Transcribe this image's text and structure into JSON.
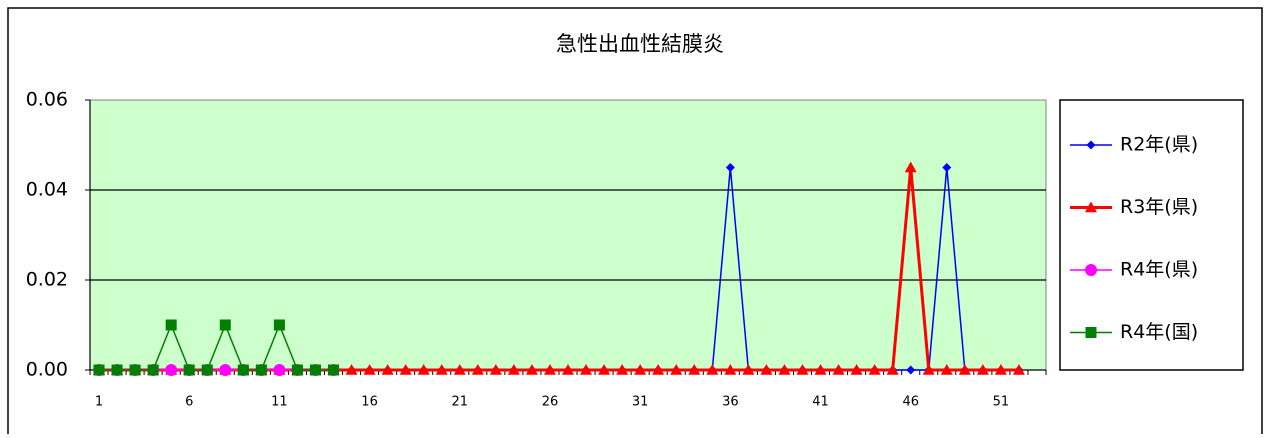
{
  "chart_data": {
    "type": "line",
    "title": "急性出血性結膜炎",
    "categories": [
      1,
      null,
      null,
      null,
      null,
      6,
      null,
      null,
      null,
      null,
      11,
      null,
      null,
      null,
      null,
      16,
      null,
      null,
      null,
      null,
      21,
      null,
      null,
      null,
      null,
      26,
      null,
      null,
      null,
      null,
      31,
      null,
      null,
      null,
      null,
      36,
      null,
      null,
      null,
      null,
      41,
      null,
      null,
      null,
      null,
      46,
      null,
      null,
      null,
      null,
      51,
      null,
      null
    ],
    "series": [
      {
        "name": "R2年(県)",
        "color": "#0000ff",
        "marker": "diamond",
        "values": [
          0,
          0,
          0,
          0,
          0,
          0,
          0,
          0,
          0,
          0,
          0,
          0,
          0,
          0,
          0,
          0,
          0,
          0,
          0,
          0,
          0,
          0,
          0,
          0,
          0,
          0,
          0,
          0,
          0,
          0,
          0,
          0,
          0,
          0,
          0,
          0.045,
          0,
          0,
          0,
          0,
          0,
          0,
          0,
          0,
          0,
          0,
          0,
          0.045,
          0,
          0,
          0,
          0,
          null
        ]
      },
      {
        "name": "R3年(県)",
        "color": "#ff0000",
        "marker": "triangle",
        "values": [
          0,
          0,
          0,
          0,
          0,
          0,
          0,
          0,
          0,
          0,
          0,
          0,
          0,
          0,
          0,
          0,
          0,
          0,
          0,
          0,
          0,
          0,
          0,
          0,
          0,
          0,
          0,
          0,
          0,
          0,
          0,
          0,
          0,
          0,
          0,
          0,
          0,
          0,
          0,
          0,
          0,
          0,
          0,
          0,
          0,
          0.045,
          0,
          0,
          0,
          0,
          0,
          0,
          null
        ]
      },
      {
        "name": "R4年(県)",
        "color": "#ff00ff",
        "marker": "circle",
        "values": [
          0,
          0,
          0,
          0,
          0,
          0,
          0,
          0,
          0,
          0,
          0,
          0,
          0,
          0,
          null,
          null,
          null,
          null,
          null,
          null,
          null,
          null,
          null,
          null,
          null,
          null,
          null,
          null,
          null,
          null,
          null,
          null,
          null,
          null,
          null,
          null,
          null,
          null,
          null,
          null,
          null,
          null,
          null,
          null,
          null,
          null,
          null,
          null,
          null,
          null,
          null,
          null,
          null
        ]
      },
      {
        "name": "R4年(国)",
        "color": "#008000",
        "marker": "square",
        "values": [
          0,
          0,
          0,
          0,
          0.01,
          0,
          0,
          0.01,
          0,
          0,
          0.01,
          0,
          0,
          0,
          null,
          null,
          null,
          null,
          null,
          null,
          null,
          null,
          null,
          null,
          null,
          null,
          null,
          null,
          null,
          null,
          null,
          null,
          null,
          null,
          null,
          null,
          null,
          null,
          null,
          null,
          null,
          null,
          null,
          null,
          null,
          null,
          null,
          null,
          null,
          null,
          null,
          null,
          null
        ]
      }
    ],
    "ylim": [
      0,
      0.06
    ],
    "yticks": [
      {
        "value": 0,
        "label": "0.00"
      },
      0.02,
      0.04,
      0.06
    ],
    "grid": true,
    "legend": "right",
    "plot_background": "#ccffcc"
  }
}
